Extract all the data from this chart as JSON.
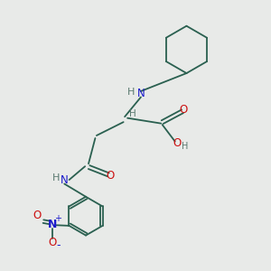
{
  "bg_color": "#e8eae8",
  "bond_color": "#2a6050",
  "dark_color": "#5a7a70",
  "red_color": "#cc1010",
  "blue_color": "#1a1acc",
  "lw": 1.3,
  "figsize": [
    3.0,
    3.0
  ],
  "dpi": 100,
  "xlim": [
    0,
    10
  ],
  "ylim": [
    0,
    10
  ]
}
